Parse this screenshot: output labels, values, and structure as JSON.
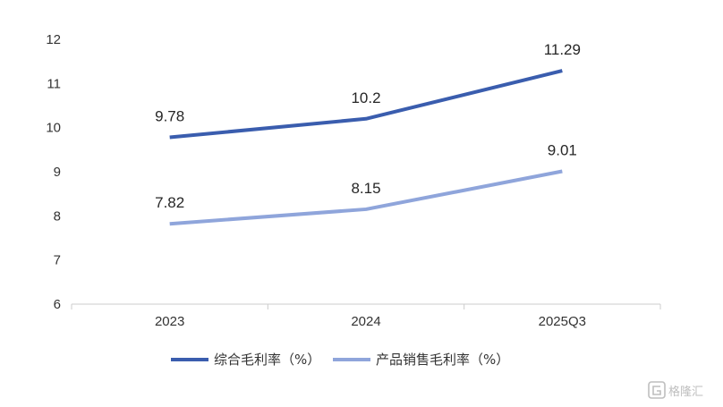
{
  "chart_data": {
    "type": "line",
    "title": "",
    "xlabel": "",
    "ylabel": "",
    "categories": [
      "2023",
      "2024",
      "2025Q3"
    ],
    "ylim": [
      6,
      12
    ],
    "yticks": [
      6,
      7,
      8,
      9,
      10,
      11,
      12
    ],
    "grid": false,
    "legend_position": "bottom",
    "series": [
      {
        "name": "综合毛利率（%）",
        "values": [
          9.78,
          10.2,
          11.29
        ],
        "labels": [
          "9.78",
          "10.2",
          "11.29"
        ],
        "color": "#3A5DAE"
      },
      {
        "name": "产品销售毛利率（%）",
        "values": [
          7.82,
          8.15,
          9.01
        ],
        "labels": [
          "7.82",
          "8.15",
          "9.01"
        ],
        "color": "#8FA5DB"
      }
    ]
  },
  "watermark": {
    "text": "格隆汇",
    "icon": "gelonghui-logo-icon"
  }
}
